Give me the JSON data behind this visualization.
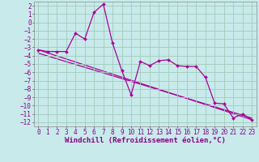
{
  "xlabel": "Windchill (Refroidissement éolien,°C)",
  "background_color": "#c8eaea",
  "grid_color": "#a0ccbb",
  "line_color": "#aa0099",
  "xlim": [
    -0.5,
    23.5
  ],
  "ylim": [
    -12.5,
    2.5
  ],
  "yticks": [
    2,
    1,
    0,
    -1,
    -2,
    -3,
    -4,
    -5,
    -6,
    -7,
    -8,
    -9,
    -10,
    -11,
    -12
  ],
  "xticks": [
    0,
    1,
    2,
    3,
    4,
    5,
    6,
    7,
    8,
    9,
    10,
    11,
    12,
    13,
    14,
    15,
    16,
    17,
    18,
    19,
    20,
    21,
    22,
    23
  ],
  "series1_x": [
    0,
    1,
    2,
    3,
    4,
    5,
    6,
    7,
    8,
    9,
    10,
    11,
    12,
    13,
    14,
    15,
    16,
    17,
    18,
    19,
    20,
    21,
    22,
    23
  ],
  "series1_y": [
    -3.3,
    -3.5,
    -3.5,
    -3.5,
    -1.3,
    -2.0,
    1.2,
    2.2,
    -2.5,
    -5.8,
    -8.7,
    -4.7,
    -5.2,
    -4.6,
    -4.5,
    -5.2,
    -5.3,
    -5.3,
    -6.6,
    -9.7,
    -9.8,
    -11.5,
    -11.0,
    -11.7
  ],
  "series2_x": [
    0,
    23
  ],
  "series2_y": [
    -3.3,
    -11.7
  ],
  "series3_x": [
    0,
    23
  ],
  "series3_y": [
    -3.7,
    -11.5
  ],
  "tick_fontsize": 5.5,
  "label_fontsize": 6.5,
  "marker": "D",
  "marker_size": 2.0,
  "lw": 0.9
}
